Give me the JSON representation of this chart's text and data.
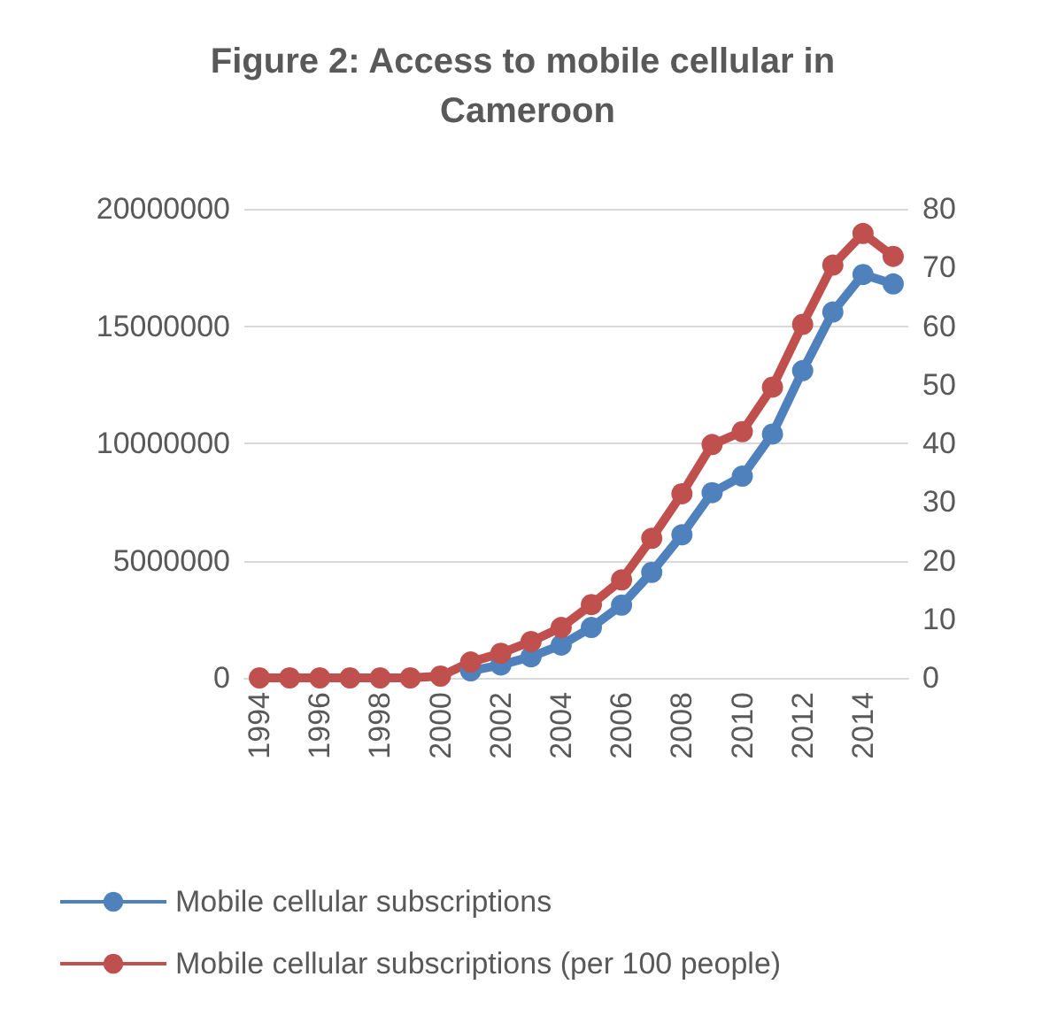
{
  "chart_data": {
    "type": "line",
    "title": "Figure 2: Access to mobile cellular in Cameroon",
    "categories": [
      "1994",
      null,
      "1996",
      null,
      "1998",
      null,
      "2000",
      null,
      "2002",
      null,
      "2004",
      null,
      "2006",
      null,
      "2008",
      null,
      "2010",
      null,
      "2012",
      null,
      "2014",
      null
    ],
    "series": [
      {
        "name": "Mobile cellular subscriptions",
        "color": "#4f81bd",
        "values": [
          null,
          null,
          null,
          null,
          null,
          null,
          null,
          300000,
          550000,
          900000,
          1400000,
          2150000,
          3100000,
          4500000,
          6100000,
          7900000,
          8600000,
          10400000,
          13100000,
          15600000,
          17200000,
          16800000
        ]
      },
      {
        "name": "Mobile cellular subscriptions (per 100 people)",
        "color": "#c0504d",
        "axis": "y2",
        "values": [
          0,
          0,
          0,
          0,
          0,
          0,
          0.3,
          2.7,
          4.2,
          6.2,
          8.6,
          12.5,
          16.7,
          23.8,
          31.4,
          39.8,
          42,
          49.6,
          60.3,
          70.4,
          75.8,
          71.9
        ]
      }
    ],
    "ylim": [
      0,
      20000000
    ],
    "yticks": [
      0,
      5000000,
      10000000,
      15000000,
      20000000
    ],
    "y2lim": [
      0,
      80
    ],
    "y2ticks": [
      0,
      10,
      20,
      30,
      40,
      50,
      60,
      70,
      80
    ],
    "grid": "y",
    "legend": "bottom",
    "marker": "circle",
    "line_style": "solid"
  }
}
